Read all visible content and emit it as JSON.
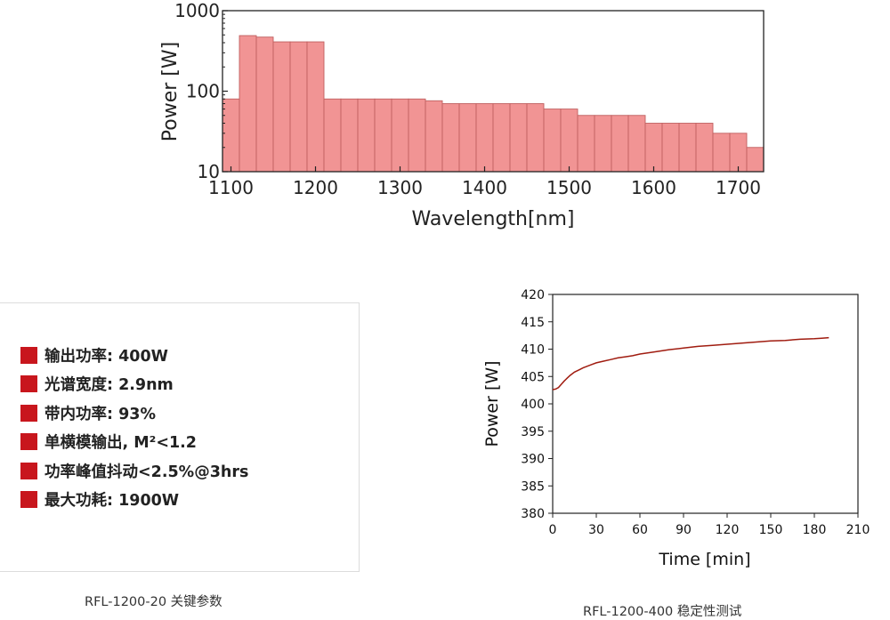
{
  "chart_data": [
    {
      "type": "bar",
      "xlabel": "Wavelength[nm]",
      "ylabel": "Power [W]",
      "xlim": [
        1090,
        1730
      ],
      "ylim": [
        10,
        1000
      ],
      "yscale": "log",
      "grid": false,
      "legend": "none",
      "bar_color": "#f19494",
      "bar_edge": "#c06060",
      "xticks": [
        1100,
        1200,
        1300,
        1400,
        1500,
        1600,
        1700
      ],
      "yticks": [
        {
          "value": 10,
          "label": "10"
        },
        {
          "value": 100,
          "label": "100"
        },
        {
          "value": 1000,
          "label": "1000"
        }
      ],
      "bins": [
        {
          "x0": 1090,
          "x1": 1110,
          "value": 80
        },
        {
          "x0": 1110,
          "x1": 1130,
          "value": 490
        },
        {
          "x0": 1130,
          "x1": 1150,
          "value": 470
        },
        {
          "x0": 1150,
          "x1": 1170,
          "value": 410
        },
        {
          "x0": 1170,
          "x1": 1190,
          "value": 410
        },
        {
          "x0": 1190,
          "x1": 1210,
          "value": 410
        },
        {
          "x0": 1210,
          "x1": 1230,
          "value": 80
        },
        {
          "x0": 1230,
          "x1": 1250,
          "value": 80
        },
        {
          "x0": 1250,
          "x1": 1270,
          "value": 80
        },
        {
          "x0": 1270,
          "x1": 1290,
          "value": 80
        },
        {
          "x0": 1290,
          "x1": 1310,
          "value": 80
        },
        {
          "x0": 1310,
          "x1": 1330,
          "value": 80
        },
        {
          "x0": 1330,
          "x1": 1350,
          "value": 76
        },
        {
          "x0": 1350,
          "x1": 1370,
          "value": 70
        },
        {
          "x0": 1370,
          "x1": 1390,
          "value": 70
        },
        {
          "x0": 1390,
          "x1": 1410,
          "value": 70
        },
        {
          "x0": 1410,
          "x1": 1430,
          "value": 70
        },
        {
          "x0": 1430,
          "x1": 1450,
          "value": 70
        },
        {
          "x0": 1450,
          "x1": 1470,
          "value": 70
        },
        {
          "x0": 1470,
          "x1": 1490,
          "value": 60
        },
        {
          "x0": 1490,
          "x1": 1510,
          "value": 60
        },
        {
          "x0": 1510,
          "x1": 1530,
          "value": 50
        },
        {
          "x0": 1530,
          "x1": 1550,
          "value": 50
        },
        {
          "x0": 1550,
          "x1": 1570,
          "value": 50
        },
        {
          "x0": 1570,
          "x1": 1590,
          "value": 50
        },
        {
          "x0": 1590,
          "x1": 1610,
          "value": 40
        },
        {
          "x0": 1610,
          "x1": 1630,
          "value": 40
        },
        {
          "x0": 1630,
          "x1": 1650,
          "value": 40
        },
        {
          "x0": 1650,
          "x1": 1670,
          "value": 40
        },
        {
          "x0": 1670,
          "x1": 1690,
          "value": 30
        },
        {
          "x0": 1690,
          "x1": 1710,
          "value": 30
        },
        {
          "x0": 1710,
          "x1": 1730,
          "value": 20
        }
      ]
    },
    {
      "type": "line",
      "xlabel": "Time [min]",
      "ylabel": "Power [W]",
      "xlim": [
        0,
        210
      ],
      "ylim": [
        380,
        420
      ],
      "xticks": [
        0,
        30,
        60,
        90,
        120,
        150,
        180,
        210
      ],
      "yticks": [
        380,
        385,
        390,
        395,
        400,
        405,
        410,
        415,
        420
      ],
      "grid": false,
      "legend": "none",
      "line_color": "#a01c10",
      "series": [
        {
          "x": [
            0,
            2,
            4,
            6,
            8,
            10,
            12,
            15,
            18,
            21,
            24,
            27,
            30,
            35,
            40,
            45,
            50,
            55,
            60,
            70,
            80,
            90,
            100,
            110,
            120,
            130,
            140,
            150,
            160,
            170,
            180,
            185,
            190
          ],
          "y": [
            402.6,
            402.7,
            403.0,
            403.6,
            404.2,
            404.7,
            405.2,
            405.8,
            406.2,
            406.6,
            406.9,
            407.2,
            407.5,
            407.8,
            408.1,
            408.4,
            408.6,
            408.8,
            409.1,
            409.5,
            409.9,
            410.2,
            410.5,
            410.7,
            410.9,
            411.1,
            411.3,
            411.5,
            411.6,
            411.8,
            411.9,
            412.0,
            412.1
          ]
        }
      ]
    }
  ],
  "specs": {
    "items": [
      {
        "label": "输出功率: 400W"
      },
      {
        "label": "光谱宽度: 2.9nm"
      },
      {
        "label": "带内功率: 93%"
      },
      {
        "label": "单横模输出, M²<1.2"
      },
      {
        "label": "功率峰值抖动<2.5%@3hrs"
      },
      {
        "label": "最大功耗: 1900W"
      }
    ],
    "bullet_color": "#c8161d"
  },
  "captions": {
    "left": "RFL-1200-20 关键参数",
    "right": "RFL-1200-400 稳定性测试"
  }
}
